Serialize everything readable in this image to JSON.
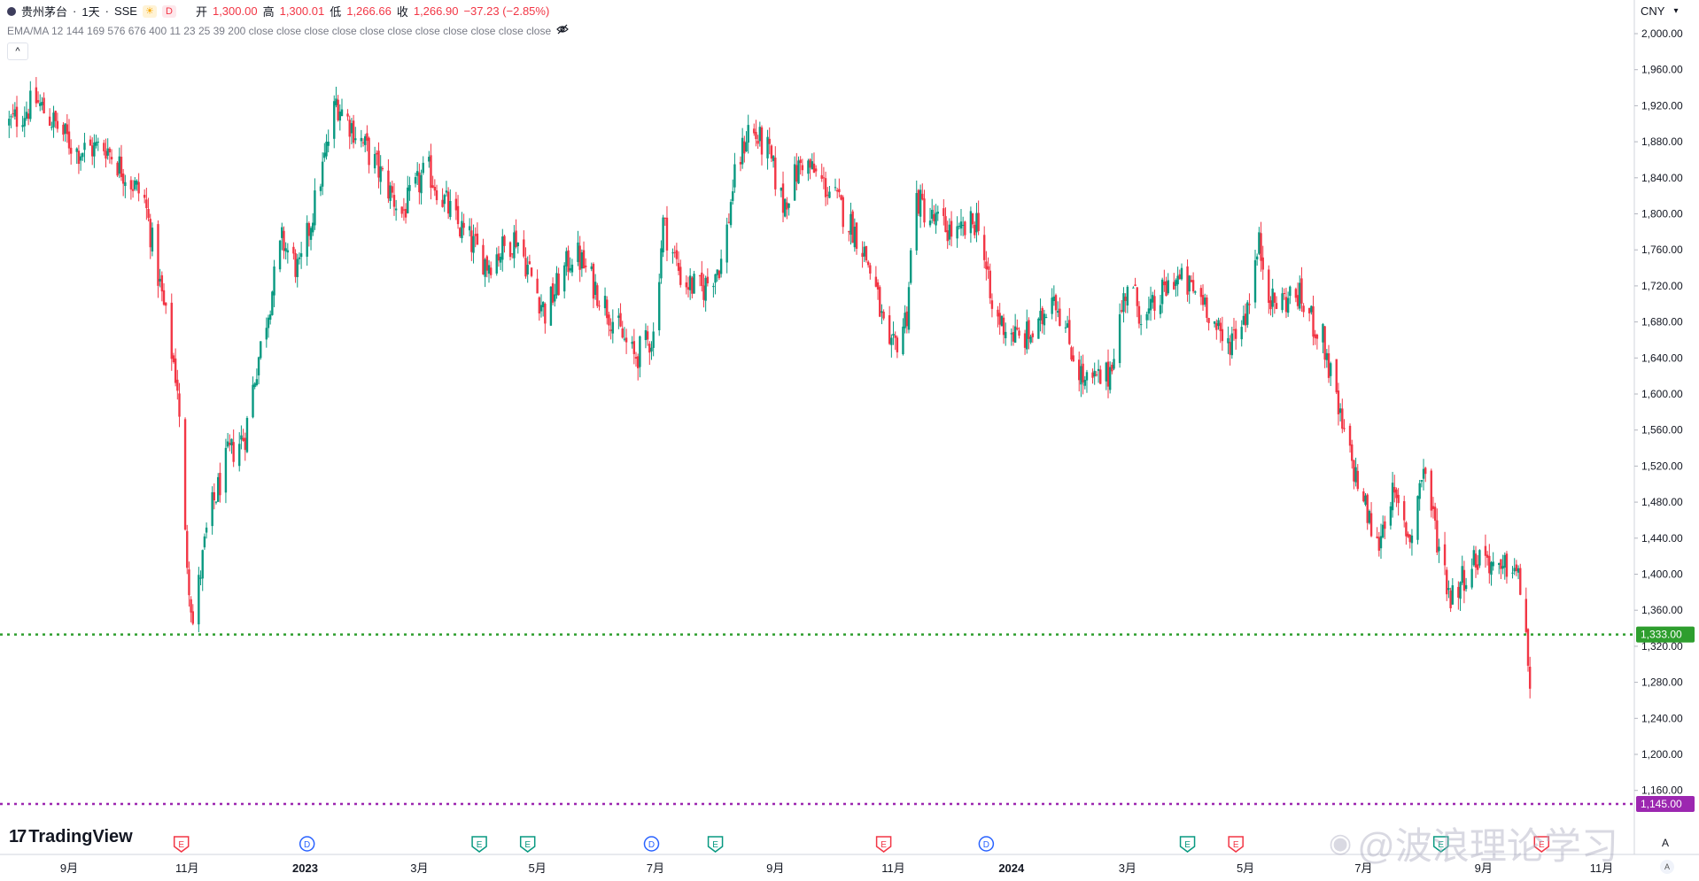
{
  "chart_data": {
    "type": "candlestick",
    "symbol": "贵州茅台",
    "interval": "1天",
    "exchange": "SSE",
    "ohlc": {
      "open": "1,300.00",
      "high": "1,300.01",
      "low": "1,266.66",
      "close": "1,266.90",
      "change": "−37.23 (−2.85%)"
    },
    "ohlc_labels": {
      "open": "开",
      "high": "高",
      "low": "低",
      "close": "收"
    },
    "indicator_label": "EMA/MA 12 144 169 576 676 400 11 23 25 39 200 close close close close close close close close close close close",
    "currency": "CNY",
    "y_ticks": [
      "2,000.00",
      "1,960.00",
      "1,920.00",
      "1,880.00",
      "1,840.00",
      "1,800.00",
      "1,760.00",
      "1,720.00",
      "1,680.00",
      "1,640.00",
      "1,600.00",
      "1,560.00",
      "1,520.00",
      "1,480.00",
      "1,440.00",
      "1,400.00",
      "1,360.00",
      "1,320.00",
      "1,280.00",
      "1,240.00",
      "1,200.00",
      "1,160.00"
    ],
    "y_range": [
      1120,
      2020
    ],
    "x_ticks": [
      {
        "label": "9月",
        "bold": false,
        "date": "2022-09-01"
      },
      {
        "label": "11月",
        "bold": false,
        "date": "2022-11-01"
      },
      {
        "label": "2023",
        "bold": true,
        "date": "2023-01-01"
      },
      {
        "label": "3月",
        "bold": false,
        "date": "2023-03-01"
      },
      {
        "label": "5月",
        "bold": false,
        "date": "2023-05-01"
      },
      {
        "label": "7月",
        "bold": false,
        "date": "2023-07-01"
      },
      {
        "label": "9月",
        "bold": false,
        "date": "2023-09-01"
      },
      {
        "label": "11月",
        "bold": false,
        "date": "2023-11-01"
      },
      {
        "label": "2024",
        "bold": true,
        "date": "2024-01-01"
      },
      {
        "label": "3月",
        "bold": false,
        "date": "2024-03-01"
      },
      {
        "label": "5月",
        "bold": false,
        "date": "2024-05-01"
      },
      {
        "label": "7月",
        "bold": false,
        "date": "2024-07-01"
      },
      {
        "label": "9月",
        "bold": false,
        "date": "2024-09-01"
      },
      {
        "label": "11月",
        "bold": false,
        "date": "2024-11-01"
      }
    ],
    "price_path": [
      {
        "date": "2022-08-01",
        "value": 1900
      },
      {
        "date": "2022-08-15",
        "value": 1925
      },
      {
        "date": "2022-09-05",
        "value": 1870
      },
      {
        "date": "2022-09-20",
        "value": 1875
      },
      {
        "date": "2022-10-10",
        "value": 1815
      },
      {
        "date": "2022-10-18",
        "value": 1720
      },
      {
        "date": "2022-10-27",
        "value": 1610
      },
      {
        "date": "2022-10-31",
        "value": 1440
      },
      {
        "date": "2022-11-04",
        "value": 1345
      },
      {
        "date": "2022-11-12",
        "value": 1460
      },
      {
        "date": "2022-11-22",
        "value": 1530
      },
      {
        "date": "2022-12-01",
        "value": 1555
      },
      {
        "date": "2022-12-06",
        "value": 1620
      },
      {
        "date": "2022-12-20",
        "value": 1770
      },
      {
        "date": "2022-12-29",
        "value": 1735
      },
      {
        "date": "2023-01-10",
        "value": 1850
      },
      {
        "date": "2023-01-17",
        "value": 1925
      },
      {
        "date": "2023-02-05",
        "value": 1860
      },
      {
        "date": "2023-02-20",
        "value": 1800
      },
      {
        "date": "2023-03-05",
        "value": 1850
      },
      {
        "date": "2023-03-20",
        "value": 1790
      },
      {
        "date": "2023-04-05",
        "value": 1745
      },
      {
        "date": "2023-04-20",
        "value": 1775
      },
      {
        "date": "2023-05-05",
        "value": 1690
      },
      {
        "date": "2023-05-20",
        "value": 1760
      },
      {
        "date": "2023-06-05",
        "value": 1700
      },
      {
        "date": "2023-06-12",
        "value": 1670
      },
      {
        "date": "2023-06-20",
        "value": 1640
      },
      {
        "date": "2023-06-30",
        "value": 1665
      },
      {
        "date": "2023-07-05",
        "value": 1790
      },
      {
        "date": "2023-07-15",
        "value": 1725
      },
      {
        "date": "2023-07-25",
        "value": 1715
      },
      {
        "date": "2023-08-05",
        "value": 1750
      },
      {
        "date": "2023-08-10",
        "value": 1830
      },
      {
        "date": "2023-08-18",
        "value": 1895
      },
      {
        "date": "2023-08-28",
        "value": 1870
      },
      {
        "date": "2023-09-05",
        "value": 1810
      },
      {
        "date": "2023-09-15",
        "value": 1860
      },
      {
        "date": "2023-10-01",
        "value": 1820
      },
      {
        "date": "2023-10-15",
        "value": 1770
      },
      {
        "date": "2023-10-22",
        "value": 1725
      },
      {
        "date": "2023-10-30",
        "value": 1640
      },
      {
        "date": "2023-11-05",
        "value": 1670
      },
      {
        "date": "2023-11-08",
        "value": 1690
      },
      {
        "date": "2023-11-12",
        "value": 1820
      },
      {
        "date": "2023-11-20",
        "value": 1795
      },
      {
        "date": "2023-12-05",
        "value": 1775
      },
      {
        "date": "2023-12-15",
        "value": 1795
      },
      {
        "date": "2023-12-22",
        "value": 1690
      },
      {
        "date": "2024-01-05",
        "value": 1660
      },
      {
        "date": "2024-01-15",
        "value": 1670
      },
      {
        "date": "2024-01-22",
        "value": 1720
      },
      {
        "date": "2024-02-01",
        "value": 1650
      },
      {
        "date": "2024-02-08",
        "value": 1610
      },
      {
        "date": "2024-02-20",
        "value": 1620
      },
      {
        "date": "2024-03-01",
        "value": 1725
      },
      {
        "date": "2024-03-10",
        "value": 1680
      },
      {
        "date": "2024-03-25",
        "value": 1730
      },
      {
        "date": "2024-04-10",
        "value": 1705
      },
      {
        "date": "2024-04-20",
        "value": 1650
      },
      {
        "date": "2024-05-01",
        "value": 1690
      },
      {
        "date": "2024-05-08",
        "value": 1765
      },
      {
        "date": "2024-05-15",
        "value": 1700
      },
      {
        "date": "2024-05-28",
        "value": 1710
      },
      {
        "date": "2024-06-10",
        "value": 1660
      },
      {
        "date": "2024-06-15",
        "value": 1610
      },
      {
        "date": "2024-06-20",
        "value": 1560
      },
      {
        "date": "2024-07-01",
        "value": 1480
      },
      {
        "date": "2024-07-08",
        "value": 1430
      },
      {
        "date": "2024-07-15",
        "value": 1490
      },
      {
        "date": "2024-07-25",
        "value": 1440
      },
      {
        "date": "2024-08-01",
        "value": 1520
      },
      {
        "date": "2024-08-08",
        "value": 1440
      },
      {
        "date": "2024-08-15",
        "value": 1375
      },
      {
        "date": "2024-08-25",
        "value": 1410
      },
      {
        "date": "2024-09-01",
        "value": 1425
      },
      {
        "date": "2024-09-10",
        "value": 1395
      },
      {
        "date": "2024-09-15",
        "value": 1420
      },
      {
        "date": "2024-09-20",
        "value": 1385
      },
      {
        "date": "2024-09-23",
        "value": 1340
      },
      {
        "date": "2024-09-24",
        "value": 1300
      },
      {
        "date": "2024-09-25",
        "value": 1267
      }
    ],
    "horizontal_levels": [
      {
        "value": 1333,
        "label": "1,333.00",
        "color": "#2e9e2e",
        "style": "dotted"
      },
      {
        "value": 1145,
        "label": "1,145.00",
        "color": "#9c27b0",
        "style": "dotted"
      }
    ],
    "event_markers": [
      {
        "kind": "E",
        "color": "#f23645",
        "date": "2022-10-29"
      },
      {
        "kind": "D",
        "color": "#2962ff",
        "date": "2023-01-02"
      },
      {
        "kind": "E",
        "color": "#089981",
        "date": "2023-04-01"
      },
      {
        "kind": "E",
        "color": "#089981",
        "date": "2023-04-26"
      },
      {
        "kind": "D",
        "color": "#2962ff",
        "date": "2023-06-29"
      },
      {
        "kind": "E",
        "color": "#089981",
        "date": "2023-08-01"
      },
      {
        "kind": "E",
        "color": "#f23645",
        "date": "2023-10-27"
      },
      {
        "kind": "D",
        "color": "#2962ff",
        "date": "2023-12-19"
      },
      {
        "kind": "E",
        "color": "#089981",
        "date": "2024-04-01"
      },
      {
        "kind": "E",
        "color": "#f23645",
        "date": "2024-04-26"
      },
      {
        "kind": "E",
        "color": "#089981",
        "date": "2024-08-10"
      },
      {
        "kind": "E",
        "color": "#f23645",
        "date": "2024-10-01"
      }
    ],
    "colors": {
      "up": "#089981",
      "down": "#f23645"
    }
  },
  "ui": {
    "logo_text": "TradingView",
    "watermark": "@波浪理论学习",
    "collapse_symbol": "^",
    "axis_corner": "A",
    "auto_scale": "A"
  }
}
